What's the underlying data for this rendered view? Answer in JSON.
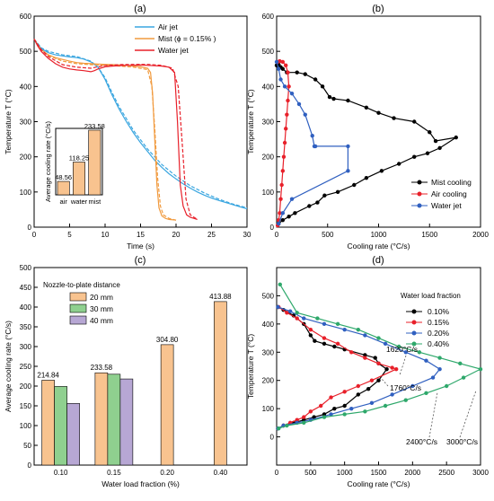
{
  "chart_data": [
    {
      "panel": "(a)",
      "type": "line",
      "xlabel": "Time (s)",
      "ylabel": "Temperature  T (°C)",
      "xlim": [
        0,
        30
      ],
      "ylim": [
        0,
        600
      ],
      "xticks": [
        0,
        5,
        10,
        15,
        20,
        25,
        30
      ],
      "yticks": [
        0,
        100,
        200,
        300,
        400,
        500,
        600
      ],
      "legend": "top-right",
      "series": [
        {
          "name": "Air jet",
          "color": "#3aa6e0",
          "x": [
            0,
            0.5,
            1,
            2,
            3,
            4,
            5,
            6,
            7,
            8,
            9,
            10,
            11,
            12,
            13,
            14,
            15,
            16,
            17,
            18,
            19,
            20,
            21,
            22,
            23,
            24,
            25,
            26,
            27,
            28,
            29,
            30
          ],
          "y": [
            535,
            520,
            508,
            496,
            490,
            487,
            484,
            482,
            478,
            470,
            455,
            420,
            375,
            335,
            300,
            268,
            240,
            215,
            190,
            170,
            152,
            137,
            123,
            111,
            100,
            91,
            83,
            76,
            70,
            64,
            58,
            52
          ]
        },
        {
          "name": "Air jet (dashed)",
          "color": "#3aa6e0",
          "dash": true,
          "x": [
            0,
            1,
            2,
            4,
            6,
            8,
            9,
            10,
            11,
            12,
            14,
            16,
            18,
            20,
            22,
            24,
            26,
            28,
            30
          ],
          "y": [
            535,
            510,
            500,
            490,
            485,
            472,
            455,
            425,
            382,
            342,
            275,
            222,
            178,
            145,
            118,
            97,
            80,
            66,
            55
          ]
        },
        {
          "name": "Mist  (ϕ = 0.15% )",
          "color": "#f19a3e",
          "x": [
            0,
            0.5,
            1,
            2,
            3,
            4,
            5,
            6,
            7,
            8,
            9,
            10,
            11,
            12,
            13,
            14,
            15,
            16,
            16.4,
            16.7,
            17,
            17.3,
            17.6,
            18,
            18.5,
            19,
            20
          ],
          "y": [
            535,
            518,
            505,
            490,
            482,
            477,
            472,
            468,
            466,
            465,
            464,
            463,
            462,
            461,
            460,
            458,
            456,
            452,
            440,
            380,
            250,
            120,
            55,
            32,
            25,
            22,
            20
          ]
        },
        {
          "name": "Mist (dashed)",
          "color": "#f19a3e",
          "dash": true,
          "x": [
            0,
            1,
            2,
            4,
            6,
            8,
            10,
            12,
            14,
            16,
            16.6,
            17,
            17.4,
            17.8,
            18.2,
            19,
            20
          ],
          "y": [
            535,
            505,
            488,
            472,
            465,
            462,
            460,
            458,
            455,
            448,
            400,
            280,
            140,
            60,
            35,
            25,
            20
          ]
        },
        {
          "name": "Water jet",
          "color": "#e8202a",
          "x": [
            0,
            0.5,
            1,
            2,
            3,
            4,
            5,
            6,
            7,
            8,
            8.5,
            9,
            10,
            11,
            12,
            13,
            14,
            15,
            16,
            17,
            18,
            19,
            19.8,
            20.2,
            20.6,
            21,
            21.5,
            22,
            23
          ],
          "y": [
            535,
            515,
            500,
            480,
            465,
            455,
            450,
            447,
            445,
            442,
            445,
            450,
            456,
            458,
            459,
            460,
            460,
            461,
            460,
            459,
            458,
            455,
            440,
            300,
            120,
            60,
            35,
            28,
            22
          ]
        },
        {
          "name": "Water jet (dashed)",
          "color": "#e8202a",
          "dash": true,
          "x": [
            0,
            1,
            2,
            4,
            6,
            8,
            10,
            12,
            14,
            16,
            18,
            19.5,
            20.3,
            20.9,
            21.4,
            22,
            23
          ],
          "y": [
            535,
            505,
            485,
            462,
            455,
            452,
            460,
            462,
            463,
            463,
            460,
            452,
            400,
            230,
            80,
            35,
            22
          ]
        }
      ],
      "inset": {
        "type": "bar",
        "ylabel": "Average cooling rate (°C/s)",
        "categories": [
          "air",
          "water",
          "mist"
        ],
        "values": [
          48.56,
          118.25,
          233.58
        ],
        "labels": [
          "48.56",
          "118.25",
          "233.58"
        ],
        "ylim": [
          0,
          240
        ]
      }
    },
    {
      "panel": "(b)",
      "type": "scatter",
      "xlabel": "Cooling rate (°C/s)",
      "ylabel": "Temperature  T (°C)",
      "xlim": [
        0,
        2000
      ],
      "ylim": [
        0,
        600
      ],
      "xticks": [
        0,
        500,
        1000,
        1500,
        2000
      ],
      "yticks": [
        0,
        100,
        200,
        300,
        400,
        500,
        600
      ],
      "legend": "bottom-right",
      "series": [
        {
          "name": "Mist cooling",
          "color": "#000000",
          "x": [
            0,
            20,
            40,
            60,
            100,
            200,
            280,
            380,
            450,
            520,
            560,
            700,
            880,
            1000,
            1150,
            1350,
            1500,
            1560,
            1760,
            1600,
            1480,
            1350,
            1200,
            1030,
            880,
            760,
            600,
            470,
            400,
            320,
            180,
            120,
            60,
            20
          ],
          "y": [
            460,
            462,
            455,
            450,
            440,
            440,
            435,
            420,
            400,
            370,
            365,
            360,
            340,
            325,
            310,
            300,
            270,
            245,
            255,
            225,
            210,
            200,
            180,
            160,
            140,
            120,
            100,
            90,
            70,
            60,
            40,
            30,
            20,
            10
          ]
        },
        {
          "name": "Air cooling",
          "color": "#e8202a",
          "x": [
            10,
            30,
            60,
            90,
            110,
            120,
            110,
            100,
            90,
            80,
            70,
            60,
            50,
            40,
            30,
            20,
            10
          ],
          "y": [
            470,
            472,
            470,
            460,
            440,
            400,
            360,
            320,
            280,
            240,
            200,
            160,
            120,
            80,
            40,
            20,
            5
          ]
        },
        {
          "name": "Water jet",
          "color": "#3060c0",
          "x": [
            0,
            20,
            40,
            80,
            150,
            220,
            280,
            350,
            370,
            380,
            700,
            700,
            150,
            60,
            20
          ],
          "y": [
            470,
            450,
            420,
            400,
            380,
            350,
            320,
            260,
            230,
            230,
            230,
            160,
            80,
            40,
            10
          ]
        }
      ]
    },
    {
      "panel": "(c)",
      "type": "bar",
      "xlabel": "Water load fraction (%)",
      "ylabel": "Average cooling rate (°C/s)",
      "ylim": [
        0,
        500
      ],
      "yticks": [
        0,
        50,
        100,
        150,
        200,
        250,
        300,
        350,
        400,
        450,
        500
      ],
      "categories": [
        "0.10",
        "0.15",
        "0.20",
        "0.40"
      ],
      "legend_title": "Nozzle-to-plate distance",
      "series": [
        {
          "name": "20 mm",
          "color": "#f8c38f",
          "values": [
            214.84,
            233.58,
            304.8,
            413.88
          ]
        },
        {
          "name": "30 mm",
          "color": "#8fd08f",
          "values": [
            199,
            230,
            null,
            null
          ]
        },
        {
          "name": "40 mm",
          "color": "#b7a7d4",
          "values": [
            156,
            218,
            null,
            null
          ]
        }
      ],
      "data_labels": [
        "214.84",
        "233.58",
        "304.80",
        "413.88"
      ]
    },
    {
      "panel": "(d)",
      "type": "scatter",
      "xlabel": "Cooling rate (°C/s)",
      "ylabel": "Temperature  T (°C)",
      "xlim": [
        0,
        3000
      ],
      "ylim": [
        -100,
        600
      ],
      "xticks": [
        0,
        500,
        1000,
        1500,
        2000,
        2500,
        3000
      ],
      "yticks": [
        0,
        100,
        200,
        300,
        400,
        500
      ],
      "legend_title": "Water load fraction",
      "series": [
        {
          "name": "0.10%",
          "color": "#000000",
          "x": [
            20,
            100,
            250,
            400,
            500,
            560,
            700,
            850,
            1000,
            1300,
            1450,
            1500,
            1620,
            1500,
            1350,
            1200,
            1000,
            850,
            700,
            550,
            400,
            250,
            100,
            20
          ],
          "y": [
            460,
            450,
            430,
            400,
            360,
            340,
            330,
            320,
            310,
            290,
            280,
            260,
            240,
            200,
            170,
            150,
            110,
            100,
            80,
            70,
            60,
            50,
            40,
            30
          ]
        },
        {
          "name": "0.15%",
          "color": "#e8202a",
          "x": [
            30,
            150,
            300,
            500,
            700,
            900,
            1100,
            1300,
            1500,
            1700,
            1760,
            1400,
            1200,
            1000,
            800,
            650,
            500,
            400,
            300,
            200,
            100,
            20
          ],
          "y": [
            460,
            440,
            420,
            380,
            350,
            330,
            300,
            280,
            260,
            245,
            240,
            200,
            180,
            160,
            140,
            110,
            90,
            70,
            60,
            50,
            40,
            30
          ]
        },
        {
          "name": "0.20%",
          "color": "#3060c0",
          "x": [
            20,
            200,
            400,
            700,
            1000,
            1300,
            1600,
            1900,
            2200,
            2400,
            2300,
            2000,
            1700,
            1400,
            1100,
            800,
            500,
            300,
            100,
            20
          ],
          "y": [
            460,
            445,
            420,
            400,
            380,
            360,
            330,
            300,
            270,
            240,
            210,
            180,
            150,
            120,
            100,
            80,
            60,
            50,
            40,
            30
          ]
        },
        {
          "name": "0.40%",
          "color": "#2ea86b",
          "x": [
            50,
            300,
            600,
            900,
            1200,
            1500,
            1800,
            2100,
            2400,
            2700,
            3000,
            2750,
            2500,
            2200,
            1900,
            1600,
            1300,
            1000,
            700,
            400,
            150,
            30
          ],
          "y": [
            540,
            440,
            420,
            400,
            380,
            350,
            320,
            300,
            280,
            260,
            240,
            210,
            180,
            155,
            130,
            110,
            90,
            80,
            70,
            50,
            40,
            30
          ]
        }
      ],
      "annotations": [
        "1620°C/s",
        "1760°C/s",
        "2400°C/s",
        "3000°C/s"
      ]
    }
  ]
}
